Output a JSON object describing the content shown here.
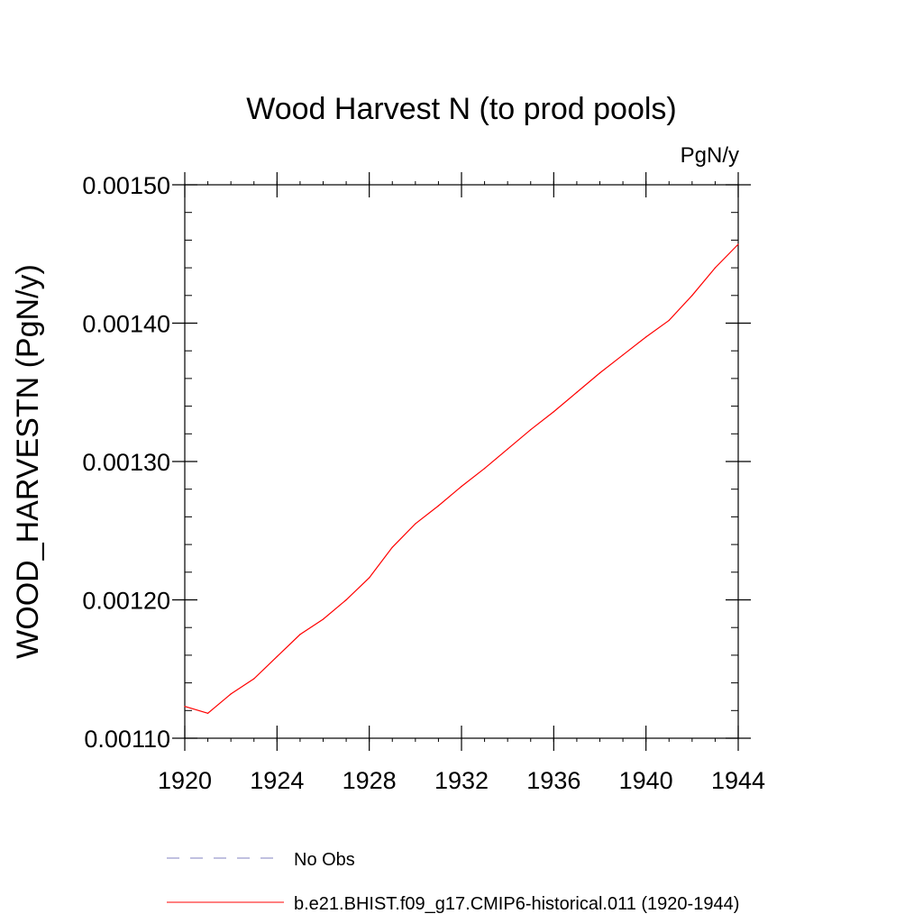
{
  "chart_data": {
    "type": "line",
    "title": "Wood Harvest N (to prod pools)",
    "units_label": "PgN/y",
    "ylabel": "WOOD_HARVESTN  (PgN/y)",
    "xlabel": "",
    "xlim": [
      1920,
      1944
    ],
    "ylim": [
      0.0011,
      0.0015
    ],
    "x_ticks": [
      1920,
      1924,
      1928,
      1932,
      1936,
      1940,
      1944
    ],
    "x_tick_labels": [
      "1920",
      "1924",
      "1928",
      "1932",
      "1936",
      "1940",
      "1944"
    ],
    "y_ticks": [
      0.0011,
      0.0012,
      0.0013,
      0.0014,
      0.0015
    ],
    "y_tick_labels": [
      "0.00110",
      "0.00120",
      "0.00130",
      "0.00140",
      "0.00150"
    ],
    "grid": false,
    "legend_position": "bottom",
    "series": [
      {
        "name": "b.e21.BHIST.f09_g17.CMIP6-historical.011 (1920-1944)",
        "color": "#ff0000",
        "style": "solid",
        "x": [
          1920,
          1921,
          1922,
          1923,
          1924,
          1925,
          1926,
          1927,
          1928,
          1929,
          1930,
          1931,
          1932,
          1933,
          1934,
          1935,
          1936,
          1937,
          1938,
          1939,
          1940,
          1941,
          1942,
          1943,
          1944
        ],
        "y": [
          0.001123,
          0.001118,
          0.001132,
          0.001143,
          0.001159,
          0.001175,
          0.001186,
          0.0012,
          0.001216,
          0.001238,
          0.001255,
          0.001268,
          0.001282,
          0.001295,
          0.001309,
          0.001323,
          0.001336,
          0.00135,
          0.001364,
          0.001377,
          0.00139,
          0.001402,
          0.00142,
          0.00144,
          0.001457
        ]
      },
      {
        "name": "No Obs",
        "color": "#8080c0",
        "style": "dashed",
        "x": [],
        "y": []
      }
    ]
  }
}
